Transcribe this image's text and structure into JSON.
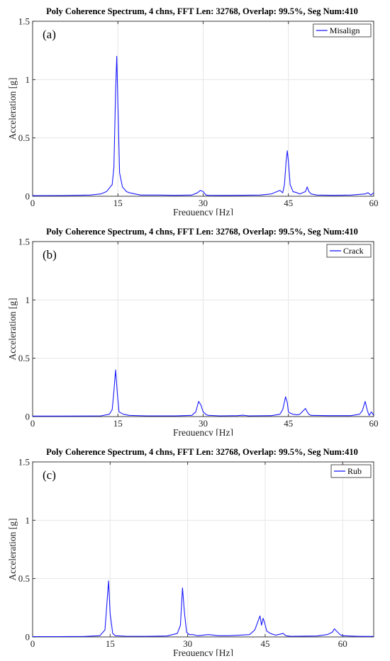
{
  "chart_data": [
    {
      "type": "line",
      "panel_label": "(a)",
      "title": "Poly Coherence Spectrum, 4 chns, FFT Len: 32768, Overlap: 99.5%, Seg Num:410",
      "xlabel": "Frequency [Hz]",
      "ylabel": "Acceleration [g]",
      "xlim": [
        0,
        60
      ],
      "ylim": [
        0,
        1.5
      ],
      "xticks": [
        0,
        15,
        30,
        45,
        60
      ],
      "xtick_labels": [
        "0",
        "15",
        "30",
        "45",
        "60"
      ],
      "yticks": [
        0,
        0.5,
        1,
        1.5
      ],
      "ytick_labels": [
        "0",
        "0.5",
        "1",
        "1.5"
      ],
      "grid": true,
      "legend_position": "top-right",
      "series": [
        {
          "name": "Misalign",
          "color": "#1a1aff",
          "x": [
            0,
            5,
            10,
            12,
            13,
            14,
            14.3,
            14.6,
            14.8,
            15,
            15.3,
            15.8,
            16.5,
            17,
            18,
            19,
            20,
            22,
            25,
            28,
            29,
            29.5,
            30,
            30.5,
            31,
            33,
            36,
            40,
            42,
            43,
            43.5,
            44,
            44.3,
            44.6,
            44.8,
            45,
            45.3,
            45.8,
            46.5,
            47,
            48,
            48.3,
            48.6,
            49,
            50,
            53,
            56,
            58.5,
            59,
            59.5,
            60
          ],
          "y": [
            0.005,
            0.006,
            0.01,
            0.02,
            0.04,
            0.1,
            0.25,
            0.9,
            1.2,
            0.8,
            0.2,
            0.08,
            0.04,
            0.03,
            0.02,
            0.01,
            0.01,
            0.01,
            0.008,
            0.01,
            0.03,
            0.05,
            0.04,
            0.01,
            0.008,
            0.007,
            0.008,
            0.01,
            0.02,
            0.04,
            0.05,
            0.03,
            0.1,
            0.3,
            0.39,
            0.3,
            0.1,
            0.04,
            0.03,
            0.02,
            0.04,
            0.08,
            0.04,
            0.02,
            0.01,
            0.008,
            0.01,
            0.02,
            0.03,
            0.01,
            0.03
          ]
        }
      ]
    },
    {
      "type": "line",
      "panel_label": "(b)",
      "title": "Poly Coherence Spectrum, 4 chns, FFT Len: 32768, Overlap: 99.5%, Seg Num:410",
      "xlabel": "Frequency [Hz]",
      "ylabel": "Acceleration [g]",
      "xlim": [
        0,
        60
      ],
      "ylim": [
        0,
        1.5
      ],
      "xticks": [
        0,
        15,
        30,
        45,
        60
      ],
      "xtick_labels": [
        "0",
        "15",
        "30",
        "45",
        "60"
      ],
      "yticks": [
        0,
        0.5,
        1,
        1.5
      ],
      "ytick_labels": [
        "0",
        "0.5",
        "1",
        "1.5"
      ],
      "grid": true,
      "legend_position": "top-right",
      "series": [
        {
          "name": "Crack",
          "color": "#1a1aff",
          "x": [
            0,
            5,
            10,
            12,
            13.5,
            14,
            14.3,
            14.6,
            14.9,
            15.2,
            15.6,
            16,
            17,
            20,
            25,
            28,
            28.7,
            29.2,
            29.6,
            30,
            30.6,
            31,
            33,
            36,
            37,
            38,
            42,
            43.5,
            44,
            44.5,
            44.8,
            45,
            45.3,
            45.8,
            46.5,
            47,
            48,
            48.3,
            48.6,
            49,
            52,
            56,
            57.5,
            58,
            58.5,
            58.9,
            59.2,
            59.6,
            60
          ],
          "y": [
            0.004,
            0.004,
            0.005,
            0.006,
            0.02,
            0.06,
            0.22,
            0.4,
            0.2,
            0.04,
            0.03,
            0.02,
            0.01,
            0.006,
            0.006,
            0.01,
            0.04,
            0.13,
            0.1,
            0.04,
            0.015,
            0.01,
            0.006,
            0.008,
            0.012,
            0.006,
            0.008,
            0.02,
            0.06,
            0.17,
            0.12,
            0.04,
            0.03,
            0.02,
            0.015,
            0.02,
            0.07,
            0.04,
            0.02,
            0.01,
            0.008,
            0.008,
            0.02,
            0.05,
            0.13,
            0.05,
            0.01,
            0.04,
            0.01
          ]
        }
      ]
    },
    {
      "type": "line",
      "panel_label": "(c)",
      "title": "Poly Coherence Spectrum, 4 chns, FFT Len: 32768, Overlap: 99.5%, Seg Num:410",
      "xlabel": "Frequency [Hz]",
      "ylabel": "Acceleration [g]",
      "xlim": [
        0,
        66
      ],
      "ylim": [
        0,
        1.5
      ],
      "xticks": [
        0,
        15,
        30,
        45,
        60
      ],
      "xtick_labels": [
        "0",
        "15",
        "30",
        "45",
        "60"
      ],
      "yticks": [
        0,
        0.5,
        1,
        1.5
      ],
      "ytick_labels": [
        "0",
        "0.5",
        "1",
        "1.5"
      ],
      "grid": true,
      "legend_position": "top-right",
      "series": [
        {
          "name": "Rub",
          "color": "#1a1aff",
          "x": [
            0,
            5,
            10,
            13,
            14,
            14.4,
            14.7,
            15,
            15.5,
            16,
            18,
            22,
            26,
            28,
            28.6,
            29,
            29.4,
            29.8,
            30.3,
            31,
            32,
            34,
            36,
            38,
            40,
            42,
            43,
            43.5,
            44,
            44.3,
            44.6,
            44.9,
            45.3,
            46,
            47,
            48.5,
            49,
            50,
            55,
            57,
            58,
            58.4,
            58.8,
            59.5,
            60,
            63,
            66
          ],
          "y": [
            0.003,
            0.003,
            0.004,
            0.01,
            0.06,
            0.3,
            0.48,
            0.2,
            0.03,
            0.01,
            0.006,
            0.005,
            0.008,
            0.03,
            0.1,
            0.42,
            0.2,
            0.04,
            0.02,
            0.02,
            0.01,
            0.02,
            0.01,
            0.01,
            0.015,
            0.02,
            0.06,
            0.12,
            0.18,
            0.1,
            0.16,
            0.12,
            0.05,
            0.03,
            0.015,
            0.03,
            0.01,
            0.005,
            0.008,
            0.02,
            0.04,
            0.07,
            0.05,
            0.02,
            0.01,
            0.005,
            0.004
          ]
        }
      ]
    }
  ]
}
